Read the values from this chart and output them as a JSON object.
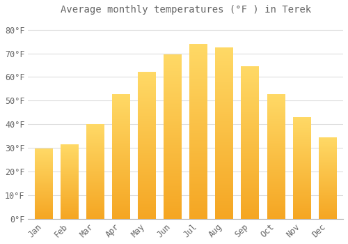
{
  "title": "Average monthly temperatures (°F ) in Terek",
  "months": [
    "Jan",
    "Feb",
    "Mar",
    "Apr",
    "May",
    "Jun",
    "Jul",
    "Aug",
    "Sep",
    "Oct",
    "Nov",
    "Dec"
  ],
  "values": [
    29.5,
    31.5,
    40.0,
    52.5,
    62.0,
    69.5,
    74.0,
    72.5,
    64.5,
    52.5,
    43.0,
    34.5
  ],
  "bar_color_bottom": "#F5A623",
  "bar_color_top": "#FFD966",
  "background_color": "#FFFFFF",
  "grid_color": "#DDDDDD",
  "text_color": "#666666",
  "ylim": [
    0,
    84
  ],
  "yticks": [
    0,
    10,
    20,
    30,
    40,
    50,
    60,
    70,
    80
  ],
  "title_fontsize": 10,
  "tick_fontsize": 8.5
}
